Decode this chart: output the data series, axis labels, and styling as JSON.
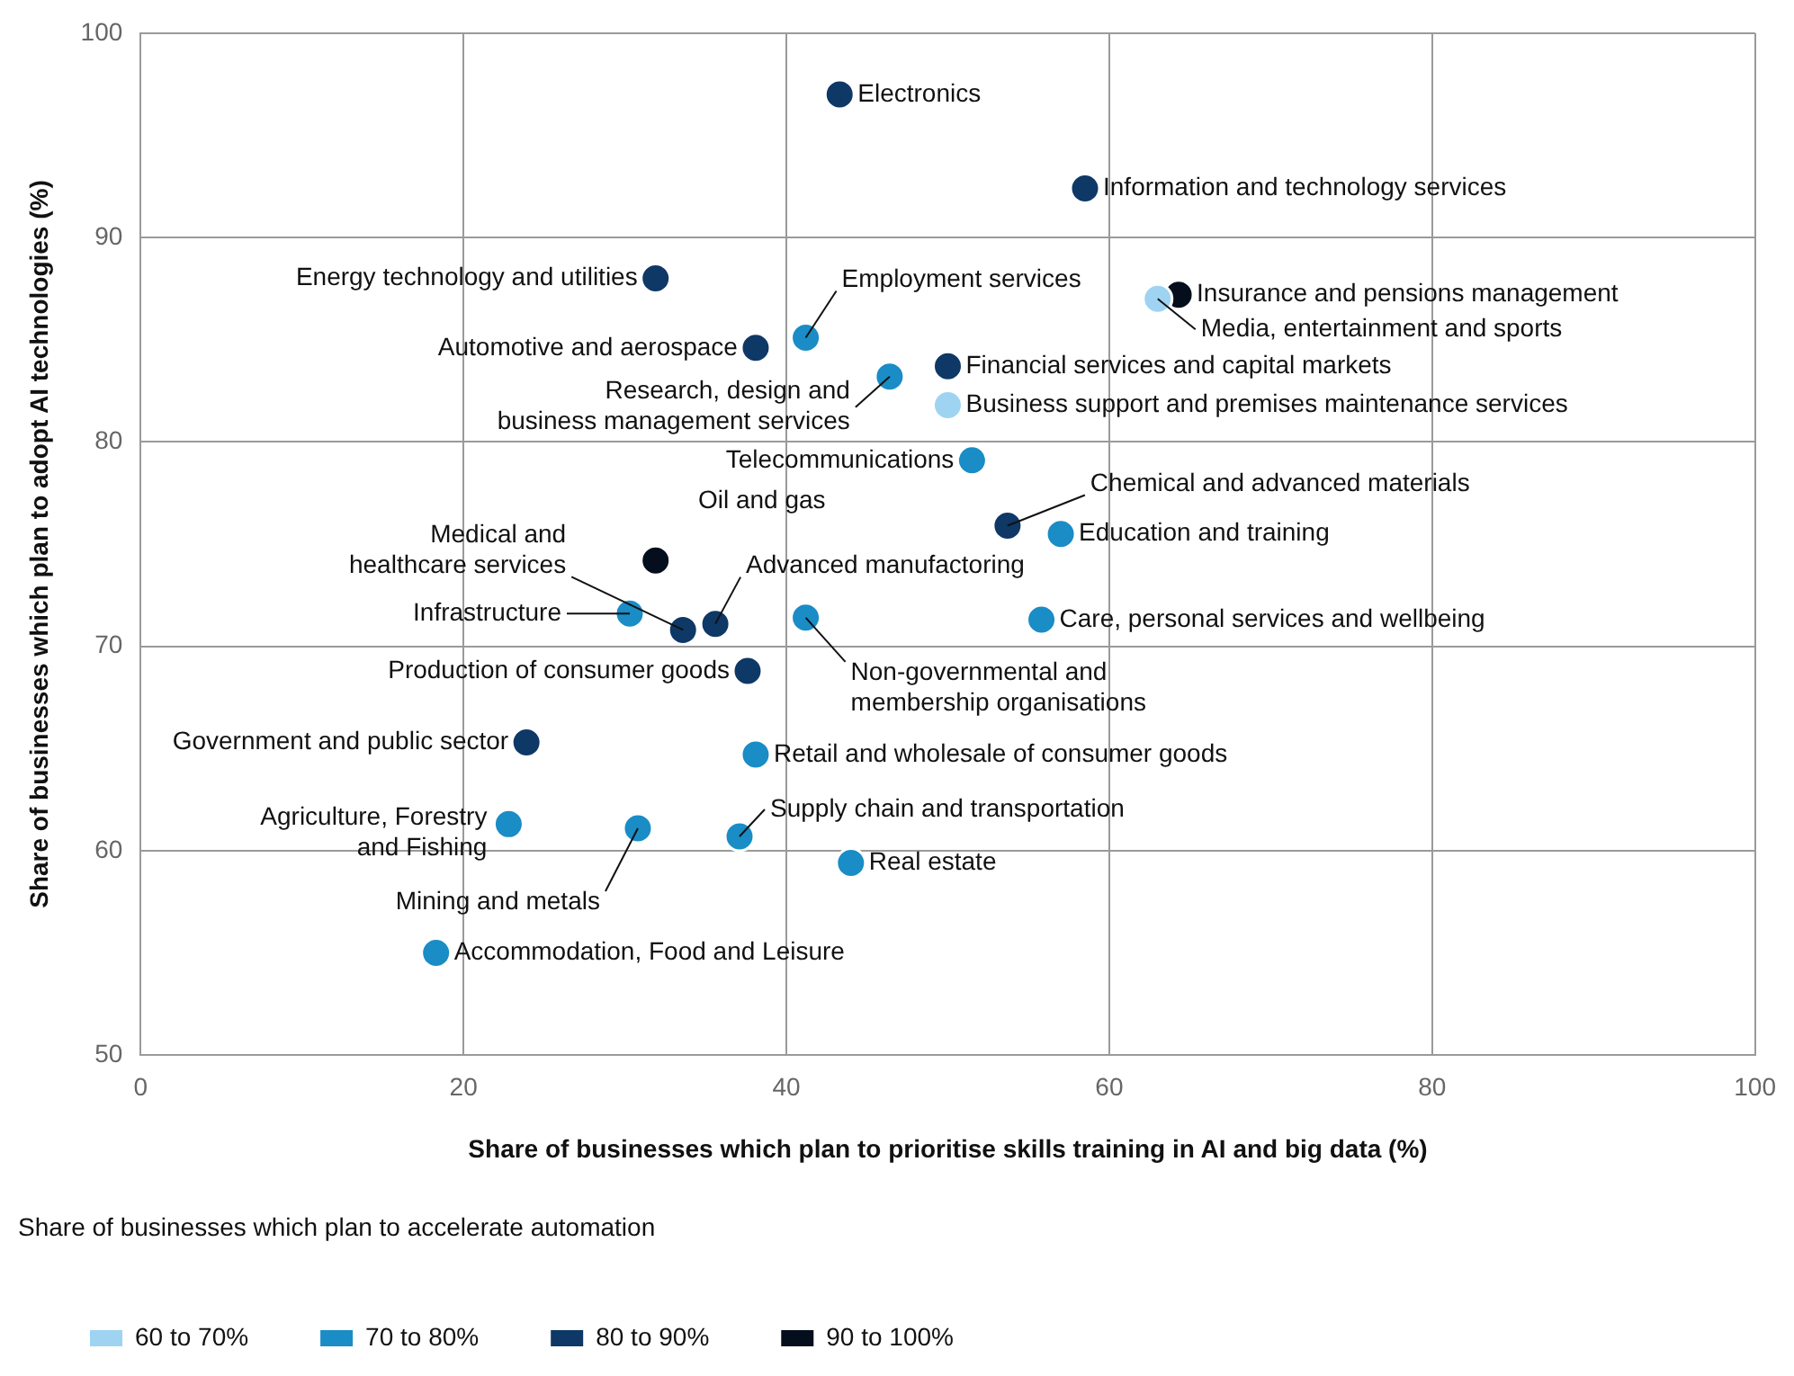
{
  "chart_data": {
    "type": "scatter",
    "xlabel": "Share of businesses which plan to prioritise skills training in AI and big data (%)",
    "ylabel": "Share of businesses which plan to adopt AI technologies (%)",
    "legend_title": "Share of businesses which plan to accelerate automation",
    "xlim": [
      0,
      100
    ],
    "xticks": [
      0,
      20,
      40,
      60,
      80,
      100
    ],
    "ylim": [
      50,
      100
    ],
    "yticks": [
      50,
      60,
      70,
      80,
      90,
      100
    ],
    "grid": true,
    "legend": "bottom left",
    "marker": "circle",
    "series": [
      {
        "name": "60 to 70%",
        "color": "#9fd3f2",
        "x": [
          63.0,
          50.0
        ],
        "values": [
          87.0,
          81.8
        ]
      },
      {
        "name": "70 to 80%",
        "color": "#1a8cc6",
        "x": [
          41.2,
          46.4,
          51.5,
          57.0,
          30.3,
          41.2,
          55.8,
          38.1,
          22.8,
          30.8,
          37.1,
          44.0,
          18.3
        ],
        "values": [
          85.1,
          83.2,
          79.1,
          75.5,
          71.6,
          71.4,
          71.3,
          64.7,
          61.3,
          61.1,
          60.7,
          59.4,
          55.0
        ]
      },
      {
        "name": "80 to 90%",
        "color": "#0e3866",
        "x": [
          43.3,
          58.5,
          31.9,
          38.1,
          50.0,
          53.7,
          33.6,
          35.6,
          37.6,
          23.9
        ],
        "values": [
          97.0,
          92.4,
          88.0,
          84.6,
          83.7,
          75.9,
          70.8,
          71.1,
          68.8,
          65.3
        ]
      },
      {
        "name": "90 to 100%",
        "color": "#050e1c",
        "x": [
          64.3,
          31.9
        ],
        "values": [
          87.2,
          74.2
        ]
      }
    ],
    "annotations": [
      {
        "text": "Electronics",
        "x": 43.3,
        "y": 97.0
      },
      {
        "text": "Information and technology services",
        "x": 58.5,
        "y": 92.4
      },
      {
        "text": "Energy technology and utilities",
        "x": 31.9,
        "y": 88.0
      },
      {
        "text": "Insurance and pensions management",
        "x": 64.3,
        "y": 87.2
      },
      {
        "text": "Media, entertainment and sports",
        "x": 63.0,
        "y": 87.0
      },
      {
        "text": "Employment services",
        "x": 41.2,
        "y": 85.1
      },
      {
        "text": "Automotive and aerospace",
        "x": 38.1,
        "y": 84.6
      },
      {
        "text": "Research, design and business management services",
        "x": 46.4,
        "y": 83.2
      },
      {
        "text": "Financial services and capital markets",
        "x": 50.0,
        "y": 83.7
      },
      {
        "text": "Business support and premises maintenance services",
        "x": 50.0,
        "y": 81.8
      },
      {
        "text": "Telecommunications",
        "x": 51.5,
        "y": 79.1
      },
      {
        "text": "Oil and gas",
        "x": 31.9,
        "y": 74.2
      },
      {
        "text": "Chemical and advanced materials",
        "x": 53.7,
        "y": 75.9
      },
      {
        "text": "Education and training",
        "x": 57.0,
        "y": 75.5
      },
      {
        "text": "Medical and healthcare services",
        "x": 33.6,
        "y": 70.8
      },
      {
        "text": "Infrastructure",
        "x": 30.3,
        "y": 71.6
      },
      {
        "text": "Advanced manufactoring",
        "x": 35.6,
        "y": 71.1
      },
      {
        "text": "Non-governmental and membership organisations",
        "x": 41.2,
        "y": 71.4
      },
      {
        "text": "Care, personal services and wellbeing",
        "x": 55.8,
        "y": 71.3
      },
      {
        "text": "Production of consumer goods",
        "x": 37.6,
        "y": 68.8
      },
      {
        "text": "Government and public sector",
        "x": 23.9,
        "y": 65.3
      },
      {
        "text": "Retail and wholesale of consumer goods",
        "x": 38.1,
        "y": 64.7
      },
      {
        "text": "Agriculture, Forestry and Fishing",
        "x": 22.8,
        "y": 61.3
      },
      {
        "text": "Mining and metals",
        "x": 30.8,
        "y": 61.1
      },
      {
        "text": "Supply chain and transportation",
        "x": 37.1,
        "y": 60.7
      },
      {
        "text": "Real estate",
        "x": 44.0,
        "y": 59.4
      },
      {
        "text": "Accommodation, Food and Leisure",
        "x": 18.3,
        "y": 55.0
      }
    ]
  }
}
